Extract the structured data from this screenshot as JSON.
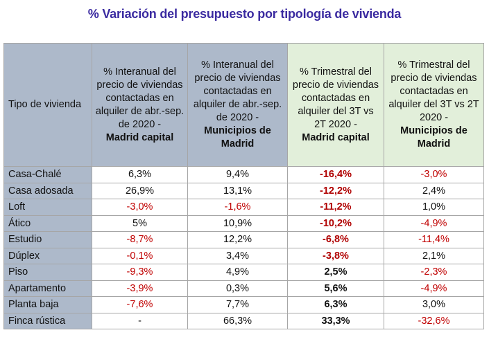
{
  "title": "% Variación del presupuesto por tipología de vivienda",
  "colors": {
    "title": "#3a2aa0",
    "header_blue": "#adb9ca",
    "header_green": "#e2efda",
    "negative": "#c00000"
  },
  "table": {
    "headers": [
      {
        "text": "Tipo de vivienda",
        "bold": ""
      },
      {
        "text": "% Interanual del precio de viviendas contactadas en alquiler de abr.-sep. de 2020 -",
        "bold": "Madrid capital"
      },
      {
        "text": "% Interanual del precio de viviendas contactadas en alquiler de abr.-sep. de 2020 -",
        "bold": "Municipios de Madrid"
      },
      {
        "text": "% Trimestral del precio de viviendas contactadas en alquiler del 3T vs 2T 2020 -",
        "bold": "Madrid capital"
      },
      {
        "text": "% Trimestral del precio de viviendas contactadas en alquiler del 3T vs 2T 2020 -",
        "bold": "Municipios de Madrid"
      }
    ],
    "rows": [
      {
        "tipo": "Casa-Chalé",
        "c1": "6,3%",
        "c2": "9,4%",
        "c3": "-16,4%",
        "c4": "-3,0%"
      },
      {
        "tipo": "Casa adosada",
        "c1": "26,9%",
        "c2": "13,1%",
        "c3": "-12,2%",
        "c4": "2,4%"
      },
      {
        "tipo": "Loft",
        "c1": "-3,0%",
        "c2": "-1,6%",
        "c3": "-11,2%",
        "c4": "1,0%"
      },
      {
        "tipo": "Ático",
        "c1": "5%",
        "c2": "10,9%",
        "c3": "-10,2%",
        "c4": "-4,9%"
      },
      {
        "tipo": "Estudio",
        "c1": "-8,7%",
        "c2": "12,2%",
        "c3": "-6,8%",
        "c4": "-11,4%"
      },
      {
        "tipo": "Dúplex",
        "c1": "-0,1%",
        "c2": "3,4%",
        "c3": "-3,8%",
        "c4": "2,1%"
      },
      {
        "tipo": "Piso",
        "c1": "-9,3%",
        "c2": "4,9%",
        "c3": "2,5%",
        "c4": "-2,3%"
      },
      {
        "tipo": "Apartamento",
        "c1": "-3,9%",
        "c2": "0,3%",
        "c3": "5,6%",
        "c4": "-4,9%"
      },
      {
        "tipo": "Planta baja",
        "c1": "-7,6%",
        "c2": "7,7%",
        "c3": "6,3%",
        "c4": "3,0%"
      },
      {
        "tipo": "Finca rústica",
        "c1": "-",
        "c2": "66,3%",
        "c3": "33,3%",
        "c4": "-32,6%"
      }
    ]
  }
}
